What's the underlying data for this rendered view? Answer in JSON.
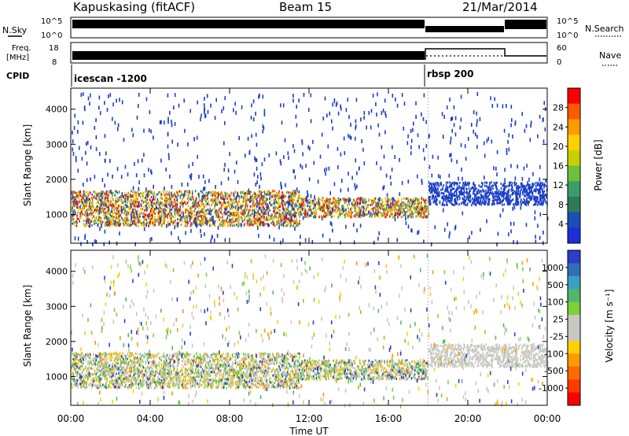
{
  "header": {
    "station": "Kapuskasing (fitACF)",
    "beam": "Beam 15",
    "date": "21/Mar/2014"
  },
  "top_panels": {
    "nsky_label": "N.Sky",
    "nsky_ticks": [
      "10^5",
      "10^0"
    ],
    "nsearch_label": "N.Search",
    "nsearch_ticks": [
      "10^5",
      "10^0"
    ],
    "freq_label": "Freq.",
    "freq_unit": "[MHz]",
    "freq_ticks": [
      "18",
      "8"
    ],
    "nave_label": "Nave",
    "nave_ticks": [
      "60",
      "0"
    ],
    "cpid_label": "CPID",
    "cpid_modes": [
      {
        "name": "icescan -1200",
        "start_hour": 0,
        "end_hour": 18
      },
      {
        "name": "rbsp 200",
        "start_hour": 18,
        "end_hour": 24
      }
    ]
  },
  "x_axis": {
    "title": "Time UT",
    "ticks": [
      "00:00",
      "04:00",
      "08:00",
      "12:00",
      "16:00",
      "20:00",
      "00:00"
    ]
  },
  "chart_data": [
    {
      "type": "heatmap",
      "name": "power",
      "ylabel": "Slant Range [km]",
      "yticks": [
        "4000",
        "3000",
        "2000",
        "1000"
      ],
      "ytick_values": [
        4000,
        3000,
        2000,
        1000
      ],
      "ylim": [
        180,
        4600
      ],
      "xlim_hours": [
        0,
        24
      ],
      "colorbar_label": "Power [dB]",
      "colorbar_ticks": [
        "28",
        "24",
        "20",
        "16",
        "12",
        "8",
        "4"
      ],
      "colorbar_colors": [
        "#ff0000",
        "#ff5a00",
        "#ff9a00",
        "#ffd000",
        "#c8d000",
        "#6fbf3a",
        "#3a9e6a",
        "#2f7a5a",
        "#1a4fb8",
        "#1a2fd8"
      ]
    },
    {
      "type": "heatmap",
      "name": "velocity",
      "ylabel": "Slant Range [km]",
      "yticks": [
        "4000",
        "3000",
        "2000",
        "1000"
      ],
      "ytick_values": [
        4000,
        3000,
        2000,
        1000
      ],
      "ylim": [
        180,
        4600
      ],
      "xlim_hours": [
        0,
        24
      ],
      "colorbar_label": "Velocity [m s⁻¹]",
      "colorbar_ticks": [
        "1000",
        "500",
        "100",
        "25",
        "-25",
        "-100",
        "-500",
        "-1000"
      ],
      "colorbar_colors": [
        "#2a3ec8",
        "#2f6fb8",
        "#3aa0c0",
        "#4fb86a",
        "#7fcf3a",
        "#c8c8c0",
        "#c8c8c0",
        "#ffd000",
        "#ff9a00",
        "#ff6a00",
        "#ff3a00",
        "#ff0000"
      ]
    }
  ]
}
